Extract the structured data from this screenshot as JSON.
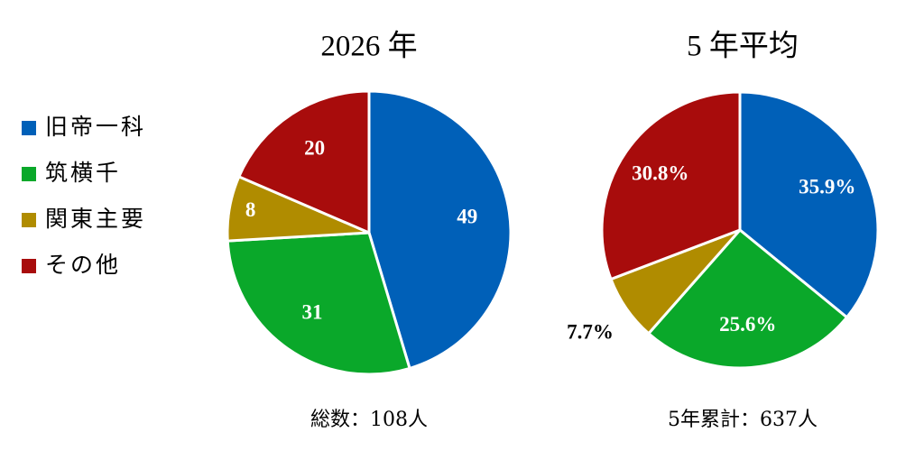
{
  "chart_data": [
    {
      "type": "pie",
      "title": "2026 年",
      "categories": [
        "旧帝一科",
        "筑横千",
        "関東主要",
        "その他"
      ],
      "colors": [
        "#0060b8",
        "#0aa82a",
        "#b08c00",
        "#a80c0c"
      ],
      "values": [
        49,
        31,
        8,
        20
      ],
      "footer": "総数：108人"
    },
    {
      "type": "pie",
      "title": "5 年平均",
      "colors": [
        "#0060b8",
        "#0aa82a",
        "#b08c00",
        "#a80c0c"
      ],
      "values": [
        35.9,
        25.6,
        7.7,
        30.8
      ],
      "value_labels": [
        "35.9%",
        "25.6%",
        "7.7%",
        "30.8%"
      ],
      "footer": "5年累計：637人"
    }
  ]
}
